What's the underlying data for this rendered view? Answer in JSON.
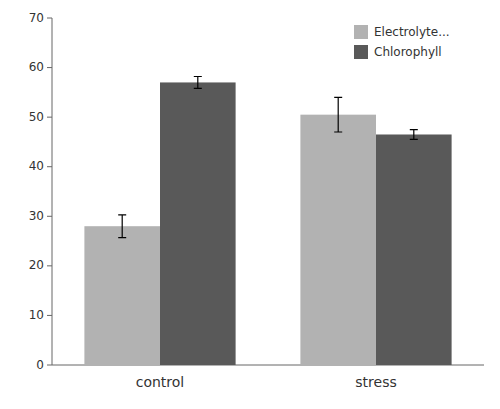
{
  "chart_data": {
    "type": "bar",
    "categories": [
      "control",
      "stress"
    ],
    "series": [
      {
        "name": "Electrolyte...",
        "color": "#b2b2b2",
        "values": [
          28.0,
          50.5
        ],
        "errors": [
          2.3,
          3.5
        ]
      },
      {
        "name": "Chlorophyll",
        "color": "#595959",
        "values": [
          57.0,
          46.5
        ],
        "errors": [
          1.2,
          1.0
        ]
      }
    ],
    "ylim": [
      0,
      70
    ],
    "yticks": [
      0,
      10,
      20,
      30,
      40,
      50,
      60,
      70
    ],
    "legend": "upper right",
    "grid": false
  }
}
